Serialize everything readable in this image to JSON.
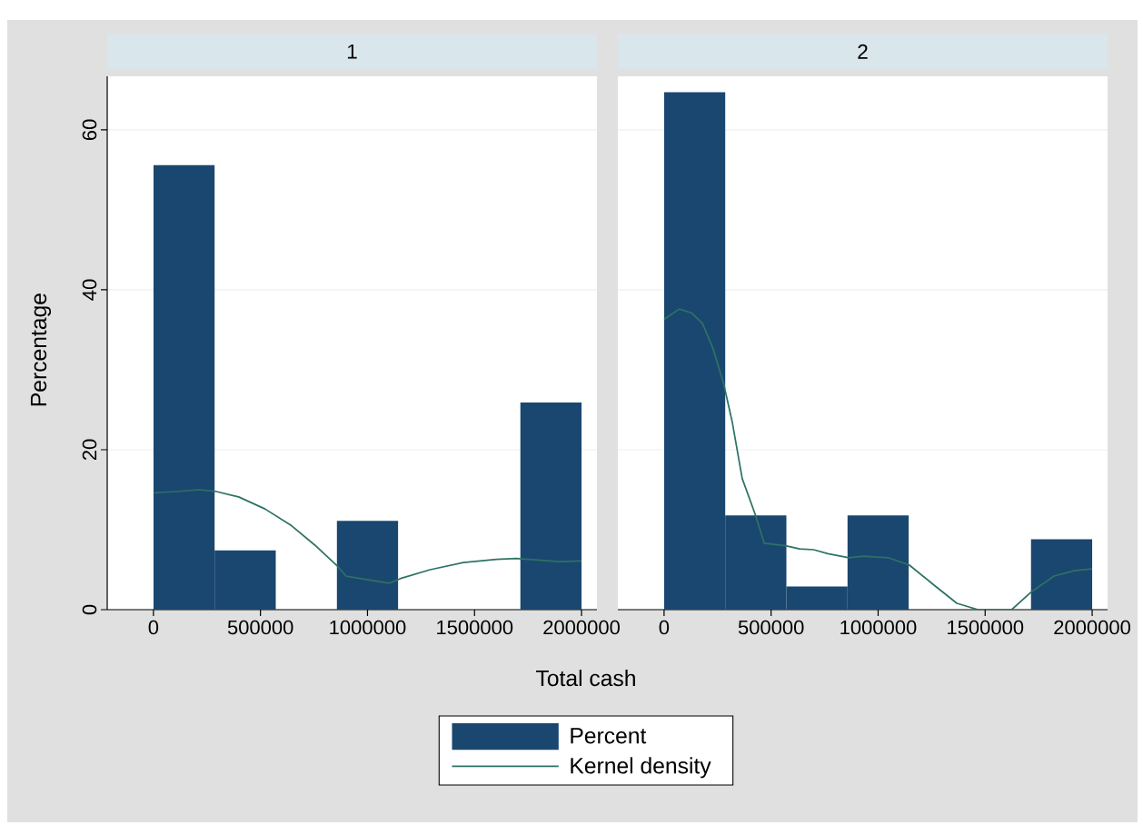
{
  "chart_data": [
    {
      "type": "histogram",
      "title": "1",
      "xlabel": "Total cash",
      "ylabel": "Percentage",
      "bins": [
        0,
        285714,
        571429,
        857143,
        1142857,
        1428571,
        1714286,
        2000000
      ],
      "series": [
        {
          "name": "Percent",
          "color": "#1a476f",
          "values": [
            55.6,
            7.4,
            0,
            11.1,
            0,
            0,
            25.9
          ]
        },
        {
          "name": "Kernel density",
          "type": "line",
          "color": "#2e7265",
          "x": [
            0,
            120000,
            213000,
            290000,
            398000,
            521000,
            645000,
            753000,
            861000,
            900000,
            1101000,
            1155000,
            1293000,
            1448000,
            1603000,
            1695000,
            1896000,
            2000000
          ],
          "values": [
            14.6,
            14.8,
            15.0,
            14.8,
            14.1,
            12.6,
            10.5,
            8.1,
            5.4,
            4.2,
            3.3,
            3.9,
            5.0,
            5.9,
            6.3,
            6.4,
            6.0,
            6.1
          ]
        }
      ],
      "xlim": [
        -216000,
        2072000
      ],
      "ylim": [
        0,
        66.7
      ],
      "xticks": [
        0,
        500000,
        1000000,
        1500000,
        2000000
      ],
      "yticks": [
        0,
        20,
        40,
        60
      ],
      "grid": "y",
      "legend": "bottom"
    },
    {
      "type": "histogram",
      "title": "2",
      "bins": [
        0,
        285714,
        571429,
        857143,
        1142857,
        1428571,
        1714286,
        2000000
      ],
      "series": [
        {
          "color": "#1a476f",
          "values": [
            64.7,
            11.8,
            2.9,
            11.8,
            0,
            0,
            8.8
          ]
        },
        {
          "type": "line",
          "color": "#2e7265",
          "x": [
            0,
            71000,
            129000,
            179000,
            228000,
            278000,
            319000,
            365000,
            426000,
            468000,
            567000,
            633000,
            699000,
            765000,
            864000,
            930000,
            1046000,
            1145000,
            1260000,
            1368000,
            1467000,
            1624000,
            1715000,
            1822000,
            1921000,
            2000000
          ],
          "values": [
            36.3,
            37.6,
            37.1,
            35.8,
            32.7,
            28.3,
            23.4,
            16.4,
            11.9,
            8.3,
            8.0,
            7.6,
            7.5,
            7.0,
            6.5,
            6.7,
            6.5,
            5.6,
            3.1,
            0.8,
            0,
            0,
            2.2,
            4.2,
            4.9,
            5.1
          ]
        }
      ],
      "xlim": [
        -216000,
        2072000
      ],
      "ylim": [
        0,
        66.7
      ],
      "xticks": [
        0,
        500000,
        1000000,
        1500000,
        2000000
      ],
      "yticks": [
        0,
        20,
        40,
        60
      ],
      "grid": "y",
      "tick_labels": "x"
    }
  ]
}
